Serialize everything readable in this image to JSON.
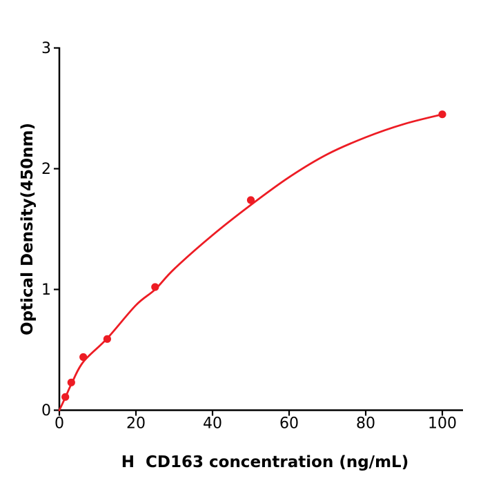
{
  "figure": {
    "background": "#ffffff",
    "axis_color": "#000000",
    "accent_color": "#ed1c24"
  },
  "chart_data": {
    "type": "scatter",
    "title": "",
    "xlabel": "H  CD163 concentration (ng/mL)",
    "ylabel": "Optical Density(450nm)",
    "xlim": [
      0,
      105.4
    ],
    "ylim": [
      0,
      3
    ],
    "x_ticks": [
      0,
      20,
      40,
      60,
      80,
      100
    ],
    "y_ticks": [
      0,
      1,
      2,
      3
    ],
    "grid": false,
    "legend_position": "none",
    "series": [
      {
        "name": "standard-data-points",
        "type": "scatter",
        "marker": "circle",
        "color": "#ed1c24",
        "points": [
          {
            "x": 1.5625,
            "y": 0.11
          },
          {
            "x": 3.125,
            "y": 0.23
          },
          {
            "x": 6.25,
            "y": 0.44
          },
          {
            "x": 12.5,
            "y": 0.59
          },
          {
            "x": 25,
            "y": 1.02
          },
          {
            "x": 50,
            "y": 1.74
          },
          {
            "x": 100,
            "y": 2.45
          }
        ]
      },
      {
        "name": "fitted-standard-curve",
        "type": "line",
        "color": "#ed1c24",
        "points": [
          {
            "x": 0,
            "y": 0
          },
          {
            "x": 1.5625,
            "y": 0.105
          },
          {
            "x": 3.125,
            "y": 0.215
          },
          {
            "x": 6.25,
            "y": 0.4
          },
          {
            "x": 12.5,
            "y": 0.595
          },
          {
            "x": 20,
            "y": 0.87
          },
          {
            "x": 25,
            "y": 1.0
          },
          {
            "x": 30,
            "y": 1.17
          },
          {
            "x": 40,
            "y": 1.45
          },
          {
            "x": 50,
            "y": 1.7
          },
          {
            "x": 60,
            "y": 1.93
          },
          {
            "x": 70,
            "y": 2.12
          },
          {
            "x": 80,
            "y": 2.26
          },
          {
            "x": 90,
            "y": 2.37
          },
          {
            "x": 100,
            "y": 2.45
          }
        ]
      }
    ]
  }
}
